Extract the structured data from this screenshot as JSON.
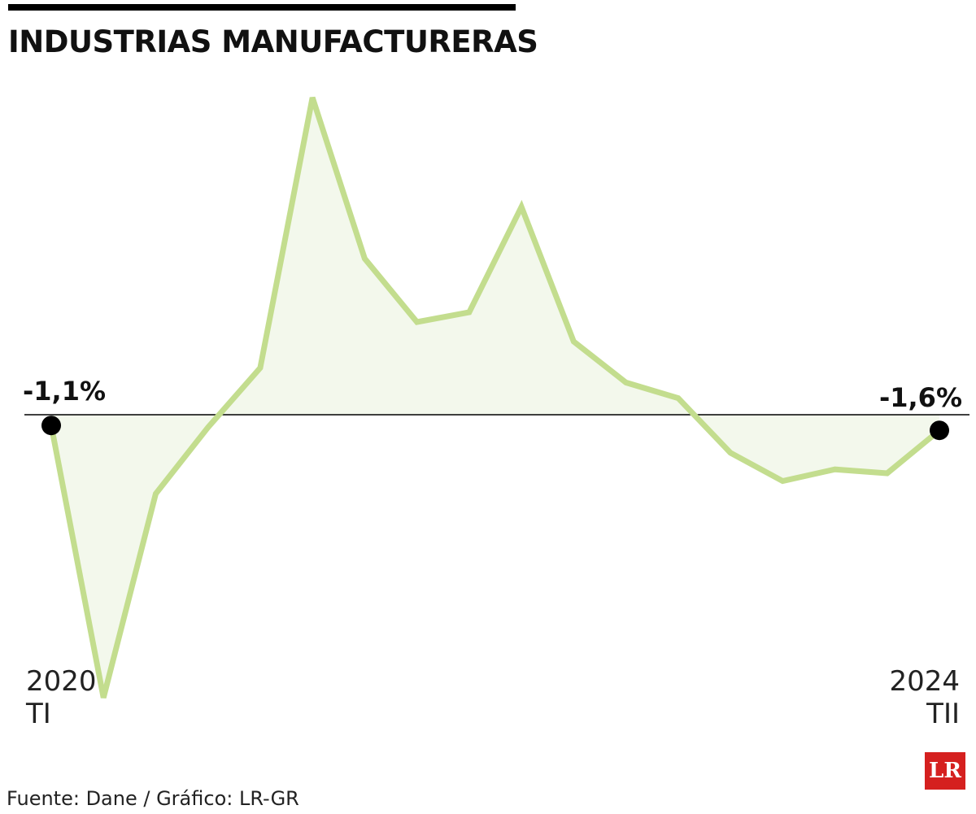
{
  "chart_data": {
    "type": "line",
    "title": "INDUSTRIAS MANUFACTURERAS",
    "categories": [
      "2020\nTI",
      null,
      null,
      null,
      null,
      null,
      null,
      null,
      null,
      null,
      null,
      null,
      null,
      null,
      null,
      null,
      null,
      "2024\nTII"
    ],
    "series": [
      {
        "name": null,
        "color": "#c3dd8e",
        "values": [
          -1.1,
          -29,
          -8.1,
          -1.3,
          4.8,
          32.5,
          16,
          9.5,
          10.5,
          21.3,
          7.5,
          3.3,
          1.7,
          -3.9,
          -6.8,
          -5.6,
          -6,
          -1.6
        ],
        "value_labels": [
          "-1,1%",
          null,
          null,
          null,
          null,
          null,
          null,
          null,
          null,
          null,
          null,
          null,
          null,
          null,
          null,
          null,
          null,
          "-1,6%"
        ]
      }
    ],
    "source": "Fuente: Dane / Gráfico: LR-GR",
    "logo": "LR"
  }
}
